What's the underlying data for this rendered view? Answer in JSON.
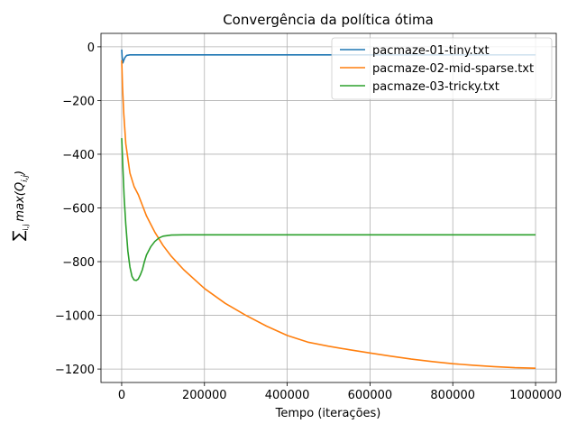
{
  "chart_data": {
    "type": "line",
    "title": "Convergência da política ótima",
    "xlabel": "Tempo (iterações)",
    "ylabel_sum": "∑",
    "ylabel_sum_sub": "i,j",
    "ylabel_body": "max(Q",
    "ylabel_body_sub": "i,j",
    "ylabel_body_close": ")",
    "xlim": [
      -50000,
      1050000
    ],
    "ylim": [
      -1250,
      50
    ],
    "xticks": [
      0,
      200000,
      400000,
      600000,
      800000,
      1000000
    ],
    "yticks": [
      0,
      -200,
      -400,
      -600,
      -800,
      -1000,
      -1200
    ],
    "xtick_labels": [
      "0",
      "200000",
      "400000",
      "600000",
      "800000",
      "1000000"
    ],
    "ytick_labels": [
      "0",
      "−200",
      "−400",
      "−600",
      "−800",
      "−1000",
      "−1200"
    ],
    "grid": true,
    "legend_position": "top-right",
    "series": [
      {
        "name": "pacmaze-01-tiny.txt",
        "color": "#1f77b4",
        "x": [
          0,
          1000,
          3000,
          5000,
          8000,
          12000,
          20000,
          50000,
          100000,
          1000000
        ],
        "y": [
          -10,
          -35,
          -60,
          -50,
          -40,
          -32,
          -30,
          -30,
          -30,
          -30
        ]
      },
      {
        "name": "pacmaze-02-mid-sparse.txt",
        "color": "#ff7f0e",
        "x": [
          0,
          2000,
          5000,
          10000,
          20000,
          30000,
          40000,
          50000,
          60000,
          70000,
          80000,
          100000,
          120000,
          150000,
          200000,
          250000,
          300000,
          350000,
          400000,
          450000,
          500000,
          550000,
          600000,
          650000,
          700000,
          750000,
          800000,
          850000,
          900000,
          950000,
          1000000
        ],
        "y": [
          -50,
          -150,
          -250,
          -360,
          -470,
          -520,
          -550,
          -590,
          -630,
          -660,
          -690,
          -740,
          -780,
          -830,
          -900,
          -955,
          -1000,
          -1040,
          -1075,
          -1100,
          -1115,
          -1128,
          -1140,
          -1152,
          -1163,
          -1172,
          -1180,
          -1186,
          -1191,
          -1195,
          -1197
        ]
      },
      {
        "name": "pacmaze-03-tricky.txt",
        "color": "#2ca02c",
        "x": [
          0,
          3000,
          6000,
          10000,
          15000,
          20000,
          25000,
          30000,
          35000,
          40000,
          45000,
          50000,
          55000,
          60000,
          70000,
          80000,
          90000,
          100000,
          120000,
          150000,
          200000,
          400000,
          1000000
        ],
        "y": [
          -340,
          -450,
          -560,
          -660,
          -760,
          -820,
          -855,
          -868,
          -870,
          -865,
          -850,
          -830,
          -800,
          -775,
          -745,
          -725,
          -712,
          -705,
          -701,
          -700,
          -700,
          -700,
          -700
        ]
      }
    ]
  }
}
